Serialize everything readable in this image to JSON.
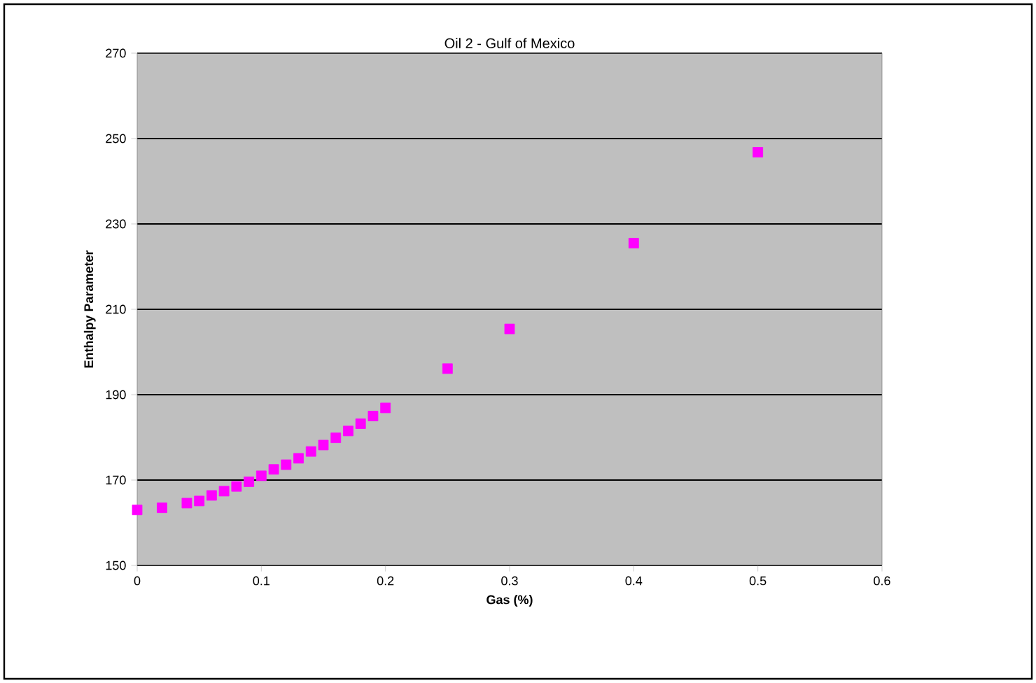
{
  "chart_data": {
    "type": "scatter",
    "title": "Oil 2 - Gulf of Mexico",
    "xlabel": "Gas (%)",
    "ylabel": "Enthalpy Parameter",
    "x": [
      0,
      0.02,
      0.04,
      0.05,
      0.06,
      0.07,
      0.08,
      0.09,
      0.1,
      0.11,
      0.12,
      0.13,
      0.14,
      0.15,
      0.16,
      0.17,
      0.18,
      0.19,
      0.2,
      0.25,
      0.3,
      0.4,
      0.5
    ],
    "series": [
      {
        "color": "#ff00ff",
        "values": [
          163.0,
          163.5,
          164.6,
          165.1,
          166.4,
          167.4,
          168.5,
          169.6,
          171.0,
          172.5,
          173.6,
          175.1,
          176.7,
          178.2,
          179.9,
          181.5,
          183.2,
          185.0,
          186.9,
          196.1,
          205.4,
          225.5,
          246.8
        ]
      }
    ],
    "xlim": [
      0,
      0.6
    ],
    "ylim": [
      150,
      270
    ],
    "xticks": [
      0,
      0.1,
      0.2,
      0.3,
      0.4,
      0.5,
      0.6
    ],
    "yticks": [
      150,
      170,
      190,
      210,
      230,
      250,
      270
    ],
    "grid": "y",
    "marker": "square"
  }
}
